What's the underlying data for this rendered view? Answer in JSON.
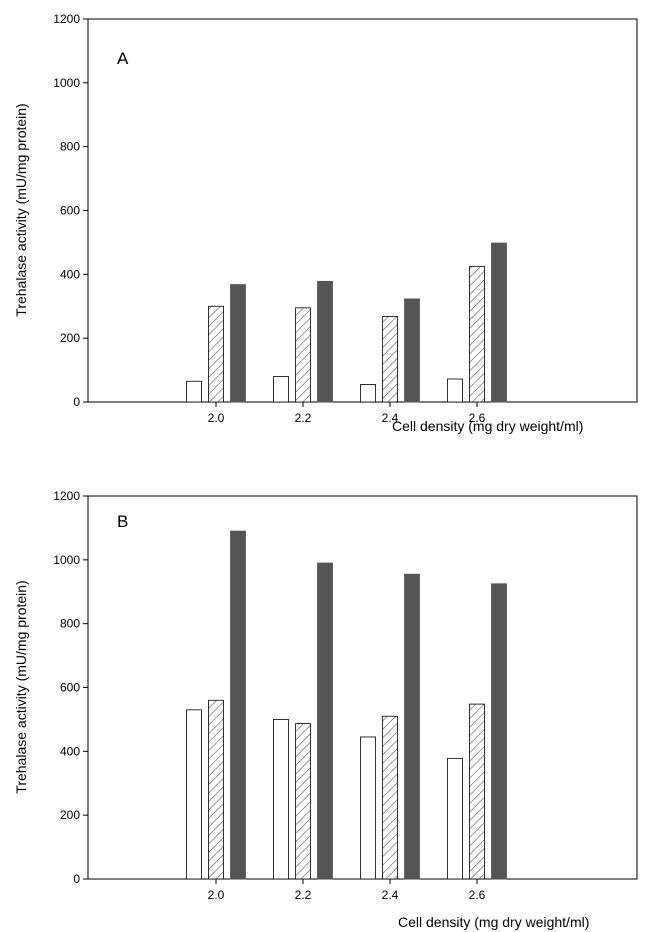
{
  "chart_data": [
    {
      "type": "bar",
      "panel_label": "A",
      "categories": [
        "2.0",
        "2.2",
        "2.4",
        "2.6"
      ],
      "series": [
        {
          "style": "open",
          "values": [
            65,
            80,
            55,
            72
          ]
        },
        {
          "style": "hatched",
          "values": [
            300,
            295,
            268,
            425
          ]
        },
        {
          "style": "filled",
          "values": [
            368,
            378,
            323,
            498
          ]
        }
      ],
      "xlabel": "Cell density (mg dry weight/ml)",
      "ylabel": "Trehalase activity (mU/mg protein)",
      "ylim": [
        0,
        1200
      ],
      "yticks": [
        "0",
        "200",
        "400",
        "600",
        "800",
        "1000",
        "1200"
      ],
      "grid": false
    },
    {
      "type": "bar",
      "panel_label": "B",
      "categories": [
        "2.0",
        "2.2",
        "2.4",
        "2.6"
      ],
      "series": [
        {
          "style": "open",
          "values": [
            530,
            500,
            445,
            378
          ]
        },
        {
          "style": "hatched",
          "values": [
            560,
            487,
            510,
            548
          ]
        },
        {
          "style": "filled",
          "values": [
            1090,
            990,
            955,
            925
          ]
        }
      ],
      "xlabel": "Cell density (mg dry weight/ml)",
      "ylabel": "Trehalase activity (mU/mg protein)",
      "ylim": [
        0,
        1200
      ],
      "yticks": [
        "0",
        "200",
        "400",
        "600",
        "800",
        "1000",
        "1200"
      ],
      "grid": false
    }
  ],
  "colors": {
    "open_fill": "#ffffff",
    "hatch_stroke": "#555555",
    "filled_bar": "#555555",
    "axis": "#000000"
  }
}
